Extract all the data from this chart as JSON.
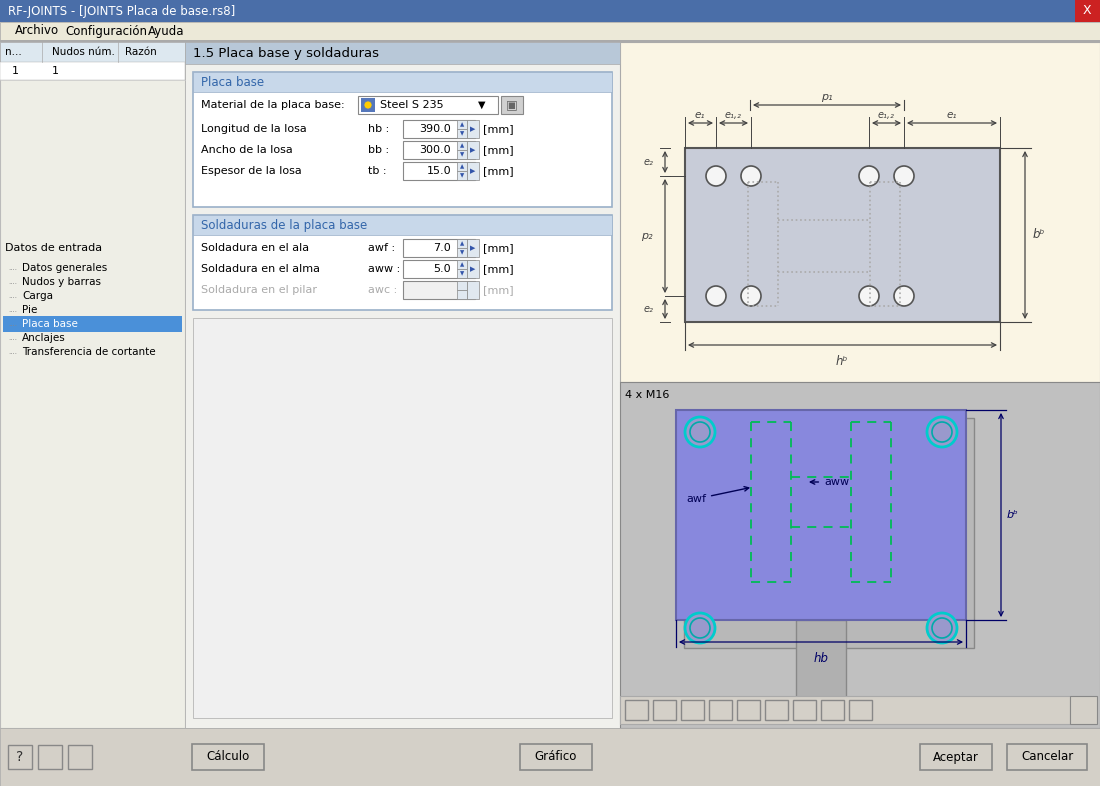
{
  "title_bar": "RF-JOINTS - [JOINTS Placa de base.rs8]",
  "menu_items": [
    "Archivo",
    "Configuración",
    "Ayuda"
  ],
  "table_headers": [
    "n...",
    "Nudos núm.",
    "Razón"
  ],
  "table_row": [
    "1",
    "1"
  ],
  "tree_label": "Datos de entrada",
  "tree_items": [
    "Datos generales",
    "Nudos y barras",
    "Carga",
    "Pie",
    "Placa base",
    "Anclajes",
    "Transferencia de cortante"
  ],
  "selected_item": "Placa base",
  "section_title": "1.5 Placa base y soldaduras",
  "group1_title": "Placa base",
  "material_label": "Material de la placa base:",
  "material_value": "Steel S 235",
  "fields": [
    {
      "label": "Longitud de la losa",
      "symbol": "hb :",
      "value": "390.0",
      "unit": "[mm]"
    },
    {
      "label": "Ancho de la losa",
      "symbol": "bb :",
      "value": "300.0",
      "unit": "[mm]"
    },
    {
      "label": "Espesor de la losa",
      "symbol": "tb :",
      "value": "15.0",
      "unit": "[mm]"
    }
  ],
  "group2_title": "Soldaduras de la placa base",
  "weld_fields": [
    {
      "label": "Soldadura en el ala",
      "symbol": "awf :",
      "value": "7.0",
      "unit": "[mm]",
      "disabled": false
    },
    {
      "label": "Soldadura en el alma",
      "symbol": "aww :",
      "value": "5.0",
      "unit": "[mm]",
      "disabled": false
    },
    {
      "label": "Soldadura en el pilar",
      "symbol": "awc :",
      "value": "",
      "unit": "[mm]",
      "disabled": true
    }
  ],
  "diagram1_label": "4 x M16",
  "btn_calcular": "Cálculo",
  "btn_grafico": "Gráfico",
  "btn_aceptar": "Aceptar",
  "btn_cancelar": "Cancelar",
  "bg_color": "#d4d0c8",
  "titlebar_bg": "#4a6ea8",
  "titlebar_fg": "#ffffff",
  "menubar_bg": "#ece9d8",
  "left_panel_bg": "#eeeee6",
  "content_bg": "#f0f0ec",
  "selected_bg": "#4a90d9",
  "selected_fg": "#ffffff",
  "group_header_bg": "#c8d8ea",
  "group_border": "#7799bb",
  "group_body_bg": "#ffffff",
  "input_bg": "#ffffff",
  "input_border": "#999999",
  "spinner_bg": "#e8e8e8",
  "diag_top_bg": "#faf5e4",
  "diag_bottom_bg": "#c0c0c0",
  "plate_top_color": "#c8ccd8",
  "plate_top_border": "#555555",
  "plate_bot_color": "#8888dd",
  "plate_bot_border": "#5555aa",
  "bolt_top_fill": "#f5f5f5",
  "bolt_top_edge": "#555555",
  "bolt_bot_fill": "#7777bb",
  "bolt_bot_edge": "#00aaaa",
  "weld_dash_color": "#00aa55",
  "dim_color": "#333333",
  "dim_color2": "#000066",
  "section_hdr_bg": "#b8c8d8",
  "bottom_bar_bg": "#d4d0c8",
  "btn_bg": "#d4d0c8",
  "btn_border": "#888888",
  "close_btn_bg": "#cc2222"
}
